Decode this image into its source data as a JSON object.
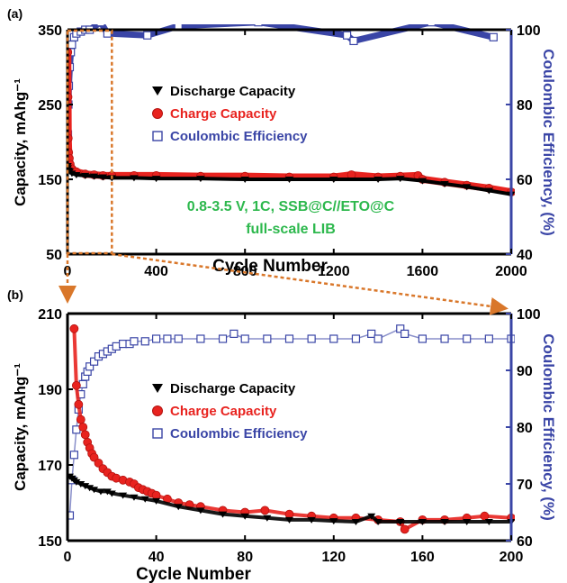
{
  "colors": {
    "discharge": "#000000",
    "charge": "#e8231f",
    "coulombic": "#3a45a6",
    "zoom_box": "#d9772a",
    "annotation": "#2db84d"
  },
  "chart_data": [
    {
      "type": "scatter",
      "panel_label": "(a)",
      "xlabel": "Cycle Number",
      "ylabel": "Capacity, mAhg⁻¹",
      "y2label": "Coulombic Efficiency, (%)",
      "xlim": [
        0,
        2000
      ],
      "ylim": [
        50,
        350
      ],
      "y2lim": [
        40,
        100
      ],
      "xticks": [
        "0",
        "400",
        "800",
        "1200",
        "1600",
        "2000"
      ],
      "yticks": [
        "50",
        "150",
        "250",
        "350"
      ],
      "y2ticks": [
        "40",
        "60",
        "80",
        "100"
      ],
      "legend": [
        "Discharge Capacity",
        "Charge Capacity",
        "Coulombic Efficiency"
      ],
      "annotation_lines": [
        "0.8-3.5 V, 1C, SSB@C//ETO@C",
        "full-scale LIB"
      ],
      "series": [
        {
          "name": "Discharge Capacity",
          "marker": "triangle-down",
          "axis": "left",
          "x": [
            1,
            2,
            5,
            10,
            20,
            40,
            80,
            120,
            160,
            200,
            300,
            400,
            600,
            800,
            1000,
            1200,
            1400,
            1500,
            1600,
            1700,
            1800,
            1900,
            2000
          ],
          "y": [
            168,
            165,
            162,
            161,
            158,
            156,
            155,
            154,
            153,
            152,
            152,
            151,
            151,
            150,
            150,
            150,
            150,
            151,
            148,
            144,
            140,
            135,
            130
          ]
        },
        {
          "name": "Charge Capacity",
          "marker": "circle",
          "axis": "left",
          "x": [
            1,
            2,
            3,
            5,
            8,
            12,
            20,
            40,
            80,
            120,
            160,
            200,
            300,
            400,
            600,
            800,
            1000,
            1200,
            1280,
            1400,
            1500,
            1580,
            1600,
            1700,
            1800,
            1900,
            2000
          ],
          "y": [
            320,
            260,
            205,
            186,
            178,
            170,
            164,
            160,
            157,
            156,
            155,
            155,
            155,
            155,
            154,
            154,
            153,
            153,
            156,
            153,
            154,
            155,
            150,
            146,
            142,
            138,
            133
          ]
        },
        {
          "name": "Coulombic Efficiency",
          "marker": "square",
          "axis": "right",
          "x": [
            1,
            2,
            4,
            6,
            10,
            15,
            20,
            30,
            40,
            60,
            80,
            100,
            150,
            180,
            360,
            500,
            860,
            1260,
            1290,
            1640,
            1920
          ],
          "y": [
            64,
            72,
            80,
            85,
            90,
            94,
            96,
            98,
            99,
            99.5,
            100,
            100,
            102,
            99,
            98.5,
            101,
            102,
            98.5,
            97,
            102,
            98
          ]
        }
      ]
    },
    {
      "type": "scatter",
      "panel_label": "(b)",
      "xlabel": "Cycle Number",
      "ylabel": "Capacity, mAhg⁻¹",
      "y2label": "Coulombic Efficiency, (%)",
      "xlim": [
        0,
        200
      ],
      "ylim": [
        150,
        210
      ],
      "y2lim": [
        60,
        105
      ],
      "xticks": [
        "0",
        "40",
        "80",
        "120",
        "160",
        "200"
      ],
      "yticks": [
        "150",
        "170",
        "190",
        "210"
      ],
      "y2ticks": [
        "60",
        "70",
        "80",
        "90",
        "100"
      ],
      "legend": [
        "Discharge Capacity",
        "Charge Capacity",
        "Coulombic Efficiency"
      ],
      "series": [
        {
          "name": "Discharge Capacity",
          "marker": "triangle-down",
          "axis": "left",
          "x": [
            1,
            2,
            3,
            4,
            6,
            8,
            10,
            12,
            15,
            18,
            20,
            25,
            30,
            35,
            40,
            50,
            60,
            70,
            80,
            90,
            100,
            110,
            120,
            130,
            137,
            140,
            150,
            160,
            170,
            180,
            190,
            200
          ],
          "y": [
            167,
            166.5,
            166,
            165.5,
            165,
            164.5,
            164,
            163.5,
            163,
            163,
            162.5,
            162,
            161.5,
            161,
            160.5,
            159,
            158,
            157,
            156.5,
            156,
            155.5,
            155.5,
            155.2,
            155,
            156.5,
            155,
            155,
            155,
            155,
            155,
            155,
            155
          ]
        },
        {
          "name": "Charge Capacity",
          "marker": "circle",
          "axis": "left",
          "x": [
            3,
            4,
            5,
            6,
            7,
            8,
            9,
            10,
            11,
            12,
            14,
            16,
            18,
            20,
            22,
            25,
            28,
            30,
            32,
            34,
            36,
            38,
            40,
            45,
            50,
            55,
            60,
            70,
            80,
            89,
            100,
            110,
            120,
            130,
            140,
            150,
            152,
            160,
            170,
            180,
            188,
            200
          ],
          "y": [
            206,
            191,
            186,
            182,
            180,
            178,
            176,
            174.5,
            173,
            172,
            170.5,
            169,
            168,
            167,
            166.5,
            166,
            165.5,
            165,
            164,
            163.5,
            163,
            162.5,
            162,
            161,
            160,
            159.5,
            159,
            158,
            157.5,
            158,
            157,
            156.5,
            156,
            156,
            155.5,
            155,
            153,
            155.5,
            155.5,
            156,
            156.5,
            156
          ]
        },
        {
          "name": "Coulombic Efficiency",
          "marker": "square",
          "axis": "right",
          "x": [
            1,
            2,
            3,
            4,
            5,
            6,
            7,
            8,
            9,
            10,
            12,
            14,
            16,
            18,
            20,
            22,
            25,
            28,
            30,
            35,
            40,
            45,
            50,
            60,
            70,
            75,
            80,
            90,
            100,
            110,
            120,
            130,
            137,
            140,
            150,
            152,
            160,
            170,
            180,
            190,
            200
          ],
          "y": [
            65,
            72,
            77,
            82,
            86,
            89,
            91,
            92.5,
            93.5,
            94.5,
            95.5,
            96.5,
            97,
            97.5,
            98,
            98.5,
            99,
            99,
            99.5,
            99.5,
            100,
            100,
            100,
            100,
            100,
            101,
            100,
            100,
            100,
            100,
            100,
            100,
            101,
            100,
            102,
            101,
            100,
            100,
            100,
            100,
            100
          ]
        }
      ]
    }
  ]
}
